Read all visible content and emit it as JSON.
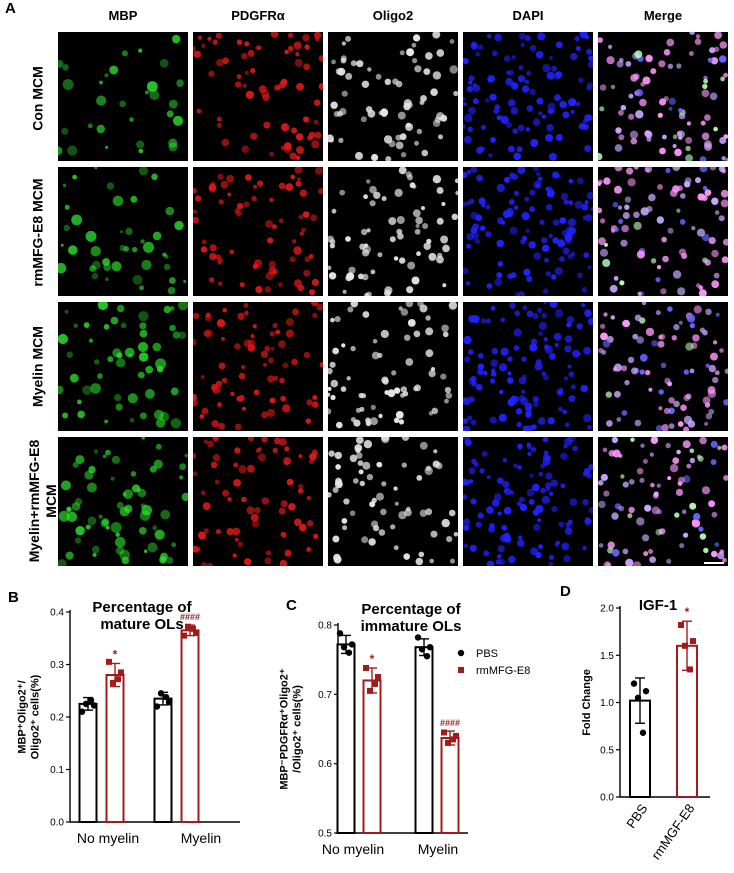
{
  "figure": {
    "panel_letters": {
      "a": "A",
      "b": "B",
      "c": "C",
      "d": "D"
    },
    "micrograph": {
      "columns": [
        {
          "label": "MBP",
          "color": "#2ee02e"
        },
        {
          "label": "PDGFRα",
          "color": "#d81818"
        },
        {
          "label": "Oligo2",
          "color": "#e6e6e6"
        },
        {
          "label": "DAPI",
          "color": "#2222ff"
        },
        {
          "label": "Merge",
          "color": "#ff88ff"
        }
      ],
      "rows": [
        {
          "label_lines": [
            "Con MCM"
          ]
        },
        {
          "label_lines": [
            "rmMFG-E8 MCM"
          ]
        },
        {
          "label_lines": [
            "Myelin MCM"
          ]
        },
        {
          "label_lines": [
            "Myelin+rmMFG-E8",
            "MCM"
          ]
        }
      ]
    },
    "legend": {
      "items": [
        {
          "name": "PBS",
          "color": "#000000"
        },
        {
          "name": "rmMFG-E8",
          "color": "#a01c1c"
        }
      ]
    },
    "significance": {
      "star": "*",
      "hash": "####"
    }
  },
  "chart_data": [
    {
      "type": "bar",
      "title": "Percentage of mature OLs",
      "title_lines": [
        "Percentage of",
        "mature OLs"
      ],
      "ylabel_lines": [
        "MBP⁺Oligo2⁺/",
        "Oligo2⁺ cells(%)"
      ],
      "categories": [
        "No myelin",
        "Myelin"
      ],
      "ylim": [
        0.0,
        0.4
      ],
      "yticks": [
        "0.0",
        "0.1",
        "0.2",
        "0.3",
        "0.4"
      ],
      "ytick_values": [
        0.0,
        0.1,
        0.2,
        0.3,
        0.4
      ],
      "series": [
        {
          "color": "#000000",
          "values": [
            0.225,
            0.235
          ],
          "err": [
            0.012,
            0.012
          ],
          "points": [
            [
              0.21,
              0.225,
              0.232,
              0.222
            ],
            [
              0.22,
              0.245,
              0.238,
              0.228
            ]
          ]
        },
        {
          "color": "#a01c1c",
          "values": [
            0.28,
            0.365
          ],
          "err": [
            0.022,
            0.01
          ],
          "points": [
            [
              0.305,
              0.265,
              0.272,
              0.285
            ],
            [
              0.355,
              0.372,
              0.368,
              0.36
            ]
          ]
        }
      ],
      "annotations": [
        {
          "series": 1,
          "category": 0,
          "text": "*"
        },
        {
          "series": 1,
          "category": 1,
          "text": "####"
        }
      ]
    },
    {
      "type": "bar",
      "title": "Percentage of immature OLs",
      "title_lines": [
        "Percentage of",
        "immature OLs"
      ],
      "ylabel_lines": [
        "MBP⁻PDGFRα⁺Oligo2⁺",
        "/Oligo2⁺ cells(%)"
      ],
      "categories": [
        "No myelin",
        "Myelin"
      ],
      "ylim": [
        0.5,
        0.8
      ],
      "yticks": [
        "0.5",
        "0.6",
        "0.7",
        "0.8"
      ],
      "ytick_values": [
        0.5,
        0.6,
        0.7,
        0.8
      ],
      "series": [
        {
          "color": "#000000",
          "values": [
            0.772,
            0.768
          ],
          "err": [
            0.013,
            0.012
          ],
          "points": [
            [
              0.788,
              0.768,
              0.76,
              0.772
            ],
            [
              0.782,
              0.765,
              0.755,
              0.768
            ]
          ]
        },
        {
          "color": "#a01c1c",
          "values": [
            0.72,
            0.637
          ],
          "err": [
            0.018,
            0.01
          ],
          "points": [
            [
              0.738,
              0.705,
              0.715,
              0.725
            ],
            [
              0.645,
              0.63,
              0.635,
              0.64
            ]
          ]
        }
      ],
      "annotations": [
        {
          "series": 1,
          "category": 0,
          "text": "*"
        },
        {
          "series": 1,
          "category": 1,
          "text": "####"
        }
      ]
    },
    {
      "type": "bar",
      "title": "IGF-1",
      "ylabel": "Fold Change",
      "categories": [
        "PBS",
        "rmMGF-E8"
      ],
      "ylim": [
        0.0,
        2.0
      ],
      "yticks": [
        "0.0",
        "0.5",
        "1.0",
        "1.5",
        "2.0"
      ],
      "ytick_values": [
        0.0,
        0.5,
        1.0,
        1.5,
        2.0
      ],
      "series": [
        {
          "color": "#000000",
          "values": [
            1.02,
            1.6
          ],
          "err": [
            0.24,
            0.26
          ],
          "point_colors": [
            "#000000",
            "#a01c1c"
          ],
          "bar_colors": [
            "#000000",
            "#a01c1c"
          ],
          "points": [
            [
              1.2,
              1.05,
              0.68,
              1.12
            ],
            [
              1.82,
              1.6,
              1.35,
              1.65
            ]
          ]
        }
      ],
      "annotations": [
        {
          "series": 0,
          "category": 1,
          "text": "*"
        }
      ]
    }
  ]
}
